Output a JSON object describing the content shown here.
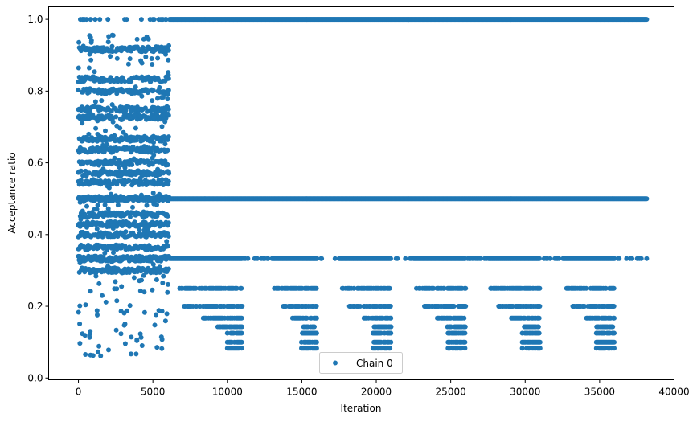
{
  "chart_data": {
    "type": "scatter",
    "xlabel": "Iteration",
    "ylabel": "Acceptance ratio",
    "xlim": [
      -2000,
      40000
    ],
    "ylim": [
      -0.005,
      1.035
    ],
    "x_ticks": [
      0,
      5000,
      10000,
      15000,
      20000,
      25000,
      30000,
      35000,
      40000
    ],
    "x_tick_labels": [
      "0",
      "5000",
      "10000",
      "15000",
      "20000",
      "25000",
      "30000",
      "35000",
      "40000"
    ],
    "y_ticks": [
      0.0,
      0.2,
      0.4,
      0.6,
      0.8,
      1.0
    ],
    "y_tick_labels": [
      "0.0",
      "0.2",
      "0.4",
      "0.6",
      "0.8",
      "1.0"
    ],
    "grid": false,
    "legend_position": "bottom-center",
    "color": "#1f77b4",
    "series": [
      {
        "name": "Chain 0",
        "marker": "dot",
        "bands": [
          {
            "y": 1.0,
            "x_start": 0,
            "x_end": 38200
          },
          {
            "y": 0.917,
            "x_start": 0,
            "x_end": 6100
          },
          {
            "y": 0.833,
            "x_start": 0,
            "x_end": 6100
          },
          {
            "y": 0.8,
            "x_start": 0,
            "x_end": 6100
          },
          {
            "y": 0.75,
            "x_start": 0,
            "x_end": 6100
          },
          {
            "y": 0.727,
            "x_start": 0,
            "x_end": 6100
          },
          {
            "y": 0.667,
            "x_start": 0,
            "x_end": 6100
          },
          {
            "y": 0.636,
            "x_start": 0,
            "x_end": 6100
          },
          {
            "y": 0.6,
            "x_start": 0,
            "x_end": 6100
          },
          {
            "y": 0.571,
            "x_start": 0,
            "x_end": 6100
          },
          {
            "y": 0.545,
            "x_start": 0,
            "x_end": 6100
          },
          {
            "y": 0.5,
            "x_start": 0,
            "x_end": 38200
          },
          {
            "y": 0.455,
            "x_start": 0,
            "x_end": 6100
          },
          {
            "y": 0.429,
            "x_start": 0,
            "x_end": 6100
          },
          {
            "y": 0.4,
            "x_start": 0,
            "x_end": 6100
          },
          {
            "y": 0.364,
            "x_start": 0,
            "x_end": 6100
          },
          {
            "y": 0.333,
            "x_start": 0,
            "x_end": 38200
          },
          {
            "y": 0.3,
            "x_start": 0,
            "x_end": 6100
          },
          {
            "y": 0.25,
            "x_start": 6800,
            "x_end": 38200
          },
          {
            "y": 0.2,
            "x_start": 6800,
            "x_end": 38200
          },
          {
            "y": 0.167,
            "x_start": 7000,
            "x_end": 36000
          },
          {
            "y": 0.143,
            "x_start": 9000,
            "x_end": 36000
          },
          {
            "y": 0.125,
            "x_start": 10000,
            "x_end": 36000
          },
          {
            "y": 0.1,
            "x_start": 10000,
            "x_end": 36000
          },
          {
            "y": 0.083,
            "x_start": 10000,
            "x_end": 36000
          }
        ],
        "cycle_segments": [
          {
            "x_start": 6100,
            "x_end": 11000
          },
          {
            "x_start": 13000,
            "x_end": 16000
          },
          {
            "x_start": 17500,
            "x_end": 21000
          },
          {
            "x_start": 22500,
            "x_end": 26000
          },
          {
            "x_start": 27500,
            "x_end": 31000
          },
          {
            "x_start": 32500,
            "x_end": 36000
          }
        ]
      }
    ]
  }
}
